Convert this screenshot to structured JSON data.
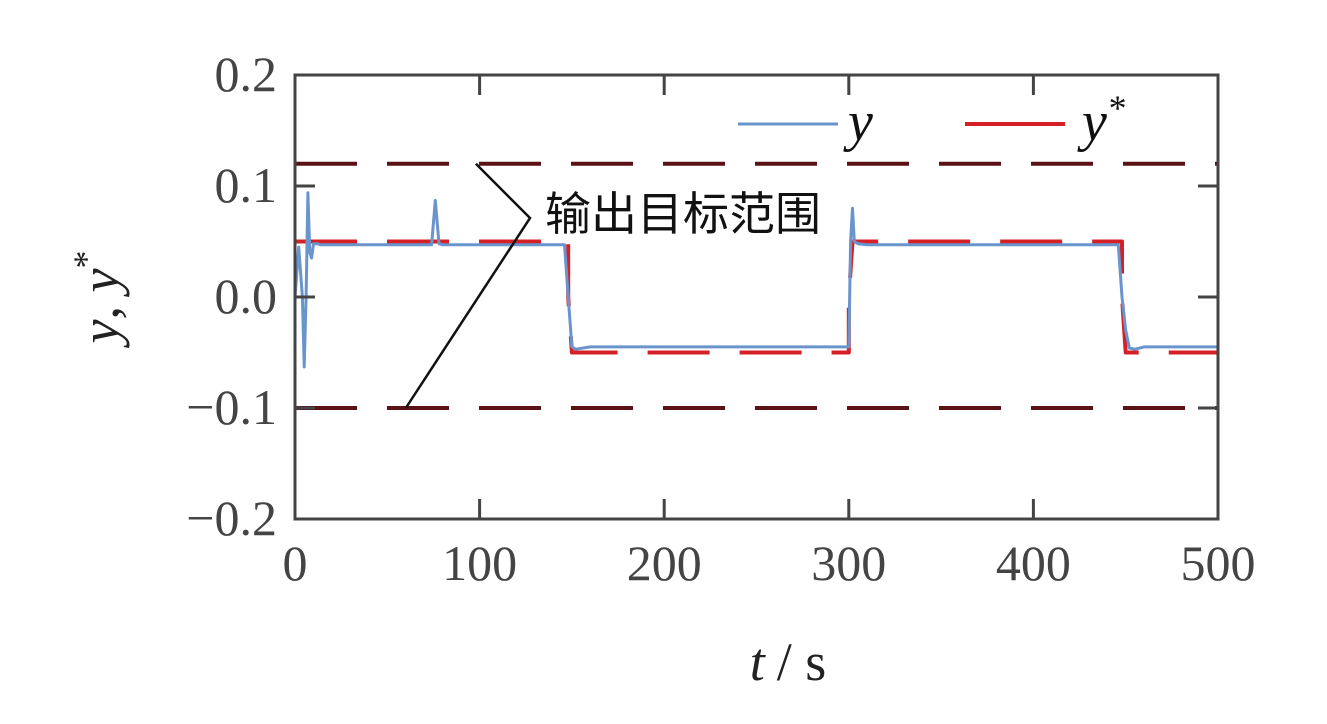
{
  "chart_data": {
    "type": "line",
    "xlabel_var": "t",
    "xlabel_unit": "/ s",
    "ylabel_parts": [
      "y",
      ", ",
      "y",
      "*"
    ],
    "xlim": [
      0,
      500
    ],
    "ylim": [
      -0.2,
      0.2
    ],
    "xticks": [
      0,
      100,
      200,
      300,
      400,
      500
    ],
    "xtick_labels": [
      "0",
      "100",
      "200",
      "300",
      "400",
      "500"
    ],
    "yticks": [
      0.2,
      0.1,
      0.0,
      -0.1,
      -0.2
    ],
    "ytick_labels": [
      "0.2",
      "0.1",
      "0.0",
      "−0.1",
      "−0.2"
    ],
    "grid": false,
    "legend_position": "top-right",
    "series": [
      {
        "name": "y",
        "color": "#6a95cc",
        "style": "solid",
        "x": [
          0,
          2,
          4,
          5,
          6,
          7,
          8,
          9,
          10,
          12,
          14,
          20,
          60,
          74,
          76,
          78,
          80,
          146,
          148,
          150,
          152,
          160,
          298,
          300,
          301,
          302,
          303,
          305,
          310,
          446,
          448,
          450,
          452,
          455,
          460,
          500
        ],
        "y": [
          0.0,
          0.045,
          0.0,
          -0.063,
          0.0,
          0.094,
          0.04,
          0.035,
          0.048,
          0.048,
          0.047,
          0.047,
          0.047,
          0.047,
          0.087,
          0.048,
          0.047,
          0.047,
          0.0,
          -0.045,
          -0.047,
          -0.045,
          -0.045,
          -0.045,
          0.05,
          0.08,
          0.05,
          0.048,
          0.047,
          0.047,
          0.0,
          -0.03,
          -0.046,
          -0.047,
          -0.045,
          -0.045
        ]
      },
      {
        "name": "y",
        "name_sup": "*",
        "color": "#d42026",
        "style": "dashed",
        "x": [
          0,
          148,
          148,
          150,
          300,
          300,
          302,
          448,
          448,
          450,
          500
        ],
        "y": [
          0.05,
          0.05,
          0.0,
          -0.05,
          -0.05,
          0.0,
          0.05,
          0.05,
          0.0,
          -0.05,
          -0.05
        ]
      }
    ],
    "bounds": {
      "color": "#5b1214",
      "style": "dashed",
      "upper": 0.12,
      "lower": -0.1
    },
    "annotation": {
      "text": "输出目标范围",
      "points_to": [
        {
          "x": 98,
          "y": 0.12
        },
        {
          "x": 60,
          "y": -0.1
        }
      ]
    }
  }
}
